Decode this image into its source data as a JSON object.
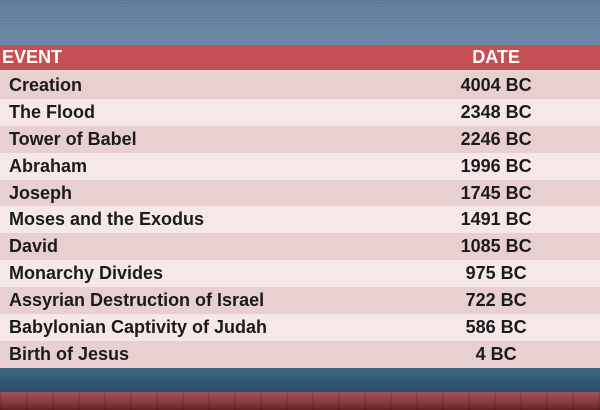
{
  "table": {
    "headers": {
      "event": "EVENT",
      "date": "DATE"
    },
    "rows": [
      {
        "event": "Creation",
        "date": "4004 BC"
      },
      {
        "event": "The Flood",
        "date": "2348 BC"
      },
      {
        "event": "Tower of Babel",
        "date": "2246 BC"
      },
      {
        "event": "Abraham",
        "date": "1996 BC"
      },
      {
        "event": "Joseph",
        "date": "1745 BC"
      },
      {
        "event": "Moses and the Exodus",
        "date": "1491 BC"
      },
      {
        "event": "David",
        "date": "1085 BC"
      },
      {
        "event": "Monarchy Divides",
        "date": "975 BC"
      },
      {
        "event": "Assyrian Destruction of Israel",
        "date": "722 BC"
      },
      {
        "event": "Babylonian Captivity of Judah",
        "date": "586 BC"
      },
      {
        "event": "Birth of Jesus",
        "date": "4 BC"
      }
    ]
  },
  "colors": {
    "header_bg": "#c35052",
    "row_dark": "#e8cfd0",
    "row_light": "#f6e8e8",
    "header_text": "#ffffff",
    "row_text": "#1b1b1b"
  }
}
